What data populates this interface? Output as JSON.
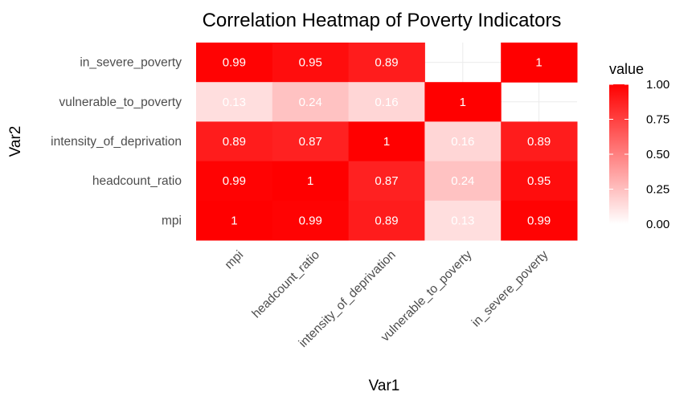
{
  "chart_data": {
    "type": "heatmap",
    "title": "Correlation Heatmap of Poverty Indicators",
    "xlabel": "Var1",
    "ylabel": "Var2",
    "x_categories": [
      "mpi",
      "headcount_ratio",
      "intensity_of_deprivation",
      "vulnerable_to_poverty",
      "in_severe_poverty"
    ],
    "y_categories": [
      "mpi",
      "headcount_ratio",
      "intensity_of_deprivation",
      "vulnerable_to_poverty",
      "in_severe_poverty"
    ],
    "cells": [
      {
        "x": "mpi",
        "y": "in_severe_poverty",
        "value": 0.99,
        "label": "0.99"
      },
      {
        "x": "headcount_ratio",
        "y": "in_severe_poverty",
        "value": 0.95,
        "label": "0.95"
      },
      {
        "x": "intensity_of_deprivation",
        "y": "in_severe_poverty",
        "value": 0.89,
        "label": "0.89"
      },
      {
        "x": "in_severe_poverty",
        "y": "in_severe_poverty",
        "value": 1,
        "label": "1"
      },
      {
        "x": "mpi",
        "y": "vulnerable_to_poverty",
        "value": 0.13,
        "label": "0.13"
      },
      {
        "x": "headcount_ratio",
        "y": "vulnerable_to_poverty",
        "value": 0.24,
        "label": "0.24"
      },
      {
        "x": "intensity_of_deprivation",
        "y": "vulnerable_to_poverty",
        "value": 0.16,
        "label": "0.16"
      },
      {
        "x": "vulnerable_to_poverty",
        "y": "vulnerable_to_poverty",
        "value": 1,
        "label": "1"
      },
      {
        "x": "mpi",
        "y": "intensity_of_deprivation",
        "value": 0.89,
        "label": "0.89"
      },
      {
        "x": "headcount_ratio",
        "y": "intensity_of_deprivation",
        "value": 0.87,
        "label": "0.87"
      },
      {
        "x": "intensity_of_deprivation",
        "y": "intensity_of_deprivation",
        "value": 1,
        "label": "1"
      },
      {
        "x": "vulnerable_to_poverty",
        "y": "intensity_of_deprivation",
        "value": 0.16,
        "label": "0.16"
      },
      {
        "x": "in_severe_poverty",
        "y": "intensity_of_deprivation",
        "value": 0.89,
        "label": "0.89"
      },
      {
        "x": "mpi",
        "y": "headcount_ratio",
        "value": 0.99,
        "label": "0.99"
      },
      {
        "x": "headcount_ratio",
        "y": "headcount_ratio",
        "value": 1,
        "label": "1"
      },
      {
        "x": "intensity_of_deprivation",
        "y": "headcount_ratio",
        "value": 0.87,
        "label": "0.87"
      },
      {
        "x": "vulnerable_to_poverty",
        "y": "headcount_ratio",
        "value": 0.24,
        "label": "0.24"
      },
      {
        "x": "in_severe_poverty",
        "y": "headcount_ratio",
        "value": 0.95,
        "label": "0.95"
      },
      {
        "x": "mpi",
        "y": "mpi",
        "value": 1,
        "label": "1"
      },
      {
        "x": "headcount_ratio",
        "y": "mpi",
        "value": 0.99,
        "label": "0.99"
      },
      {
        "x": "intensity_of_deprivation",
        "y": "mpi",
        "value": 0.89,
        "label": "0.89"
      },
      {
        "x": "vulnerable_to_poverty",
        "y": "mpi",
        "value": 0.13,
        "label": "0.13"
      },
      {
        "x": "in_severe_poverty",
        "y": "mpi",
        "value": 0.99,
        "label": "0.99"
      }
    ],
    "legend": {
      "title": "value",
      "position": "right",
      "ticks": [
        "0.00",
        "0.25",
        "0.50",
        "0.75",
        "1.00"
      ],
      "tick_values": [
        0,
        0.25,
        0.5,
        0.75,
        1
      ],
      "range": [
        0,
        1
      ],
      "low_color": "#ffffff",
      "high_color": "#ff0000"
    },
    "grid": true
  }
}
